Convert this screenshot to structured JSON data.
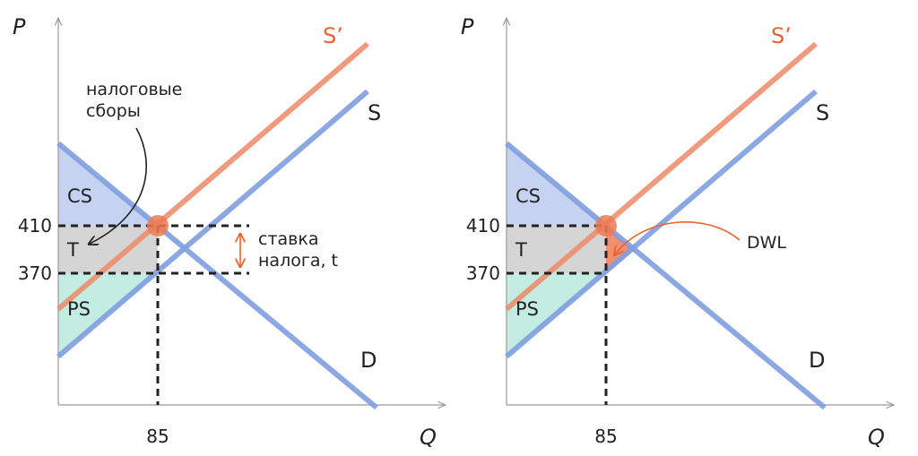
{
  "chart_data": [
    {
      "type": "line",
      "panel": "left",
      "x_label": "Q",
      "y_label": "P",
      "x_ticks": [
        "85"
      ],
      "y_ticks": [
        "410",
        "370"
      ],
      "equilibrium": {
        "q": 85,
        "p_buyers": 410,
        "p_sellers": 370
      },
      "series": [
        {
          "name": "S’",
          "color": "#ef8a67"
        },
        {
          "name": "S",
          "color": "#7f9ee0"
        },
        {
          "name": "D",
          "color": "#7f9ee0"
        }
      ],
      "areas": [
        {
          "name": "CS",
          "color": "#c6d2f1"
        },
        {
          "name": "T",
          "color": "#d5d5d5"
        },
        {
          "name": "PS",
          "color": "#c3ece3"
        }
      ],
      "annotations": {
        "tax_revenue": [
          "налоговые",
          "сборы"
        ],
        "tax_rate": [
          "ставка",
          "налога, t"
        ]
      }
    },
    {
      "type": "line",
      "panel": "right",
      "x_label": "Q",
      "y_label": "P",
      "x_ticks": [
        "85"
      ],
      "y_ticks": [
        "410",
        "370"
      ],
      "equilibrium": {
        "q": 85,
        "p_buyers": 410,
        "p_sellers": 370
      },
      "series": [
        {
          "name": "S’",
          "color": "#ef8a67"
        },
        {
          "name": "S",
          "color": "#7f9ee0"
        },
        {
          "name": "D",
          "color": "#7f9ee0"
        }
      ],
      "areas": [
        {
          "name": "CS",
          "color": "#c6d2f1"
        },
        {
          "name": "T",
          "color": "#d5d5d5"
        },
        {
          "name": "PS",
          "color": "#c3ece3"
        },
        {
          "name": "DWL",
          "color": "#ef7a52"
        }
      ],
      "annotations": {
        "dwl": "DWL"
      }
    }
  ]
}
